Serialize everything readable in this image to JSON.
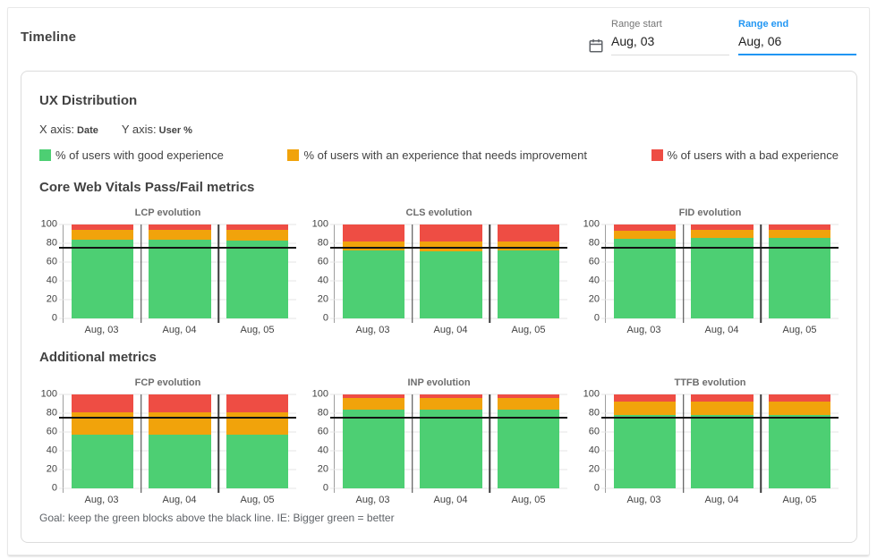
{
  "header": {
    "title": "Timeline",
    "range_start": {
      "label": "Range start",
      "value": "Aug, 03"
    },
    "range_end": {
      "label": "Range end",
      "value": "Aug, 06"
    }
  },
  "panel": {
    "ux_title": "UX Distribution",
    "x_axis_label": "X axis:",
    "x_axis_value": "Date",
    "y_axis_label": "Y axis:",
    "y_axis_value": "User %",
    "legend": [
      {
        "label": "% of users with good experience",
        "color": "#4dcf73"
      },
      {
        "label": "% of users with an experience that needs improvement",
        "color": "#f1a30b"
      },
      {
        "label": "% of users with a bad experience",
        "color": "#ee4d44"
      }
    ],
    "cwv_title": "Core Web Vitals Pass/Fail metrics",
    "additional_title": "Additional metrics",
    "goal_note": "Goal: keep the green blocks above the black line. IE: Bigger green = better"
  },
  "colors": {
    "good": "#4dcf73",
    "needs_improvement": "#f1a30b",
    "bad": "#ee4d44",
    "threshold_line": "#141414",
    "accent": "#2196f3"
  },
  "chart_data": [
    {
      "type": "bar",
      "stacked": true,
      "title": "LCP evolution",
      "xlabel": "Date",
      "ylabel": "User %",
      "ylim": [
        0,
        100
      ],
      "yticks": [
        0,
        20,
        40,
        60,
        80,
        100
      ],
      "categories": [
        "Aug, 03",
        "Aug, 04",
        "Aug, 05"
      ],
      "series": [
        {
          "name": "% of users with good experience",
          "color": "#4dcf73",
          "values": [
            84,
            84,
            83
          ]
        },
        {
          "name": "% of users with an experience that needs improvement",
          "color": "#f1a30b",
          "values": [
            10,
            10,
            11
          ]
        },
        {
          "name": "% of users with a bad experience",
          "color": "#ee4d44",
          "values": [
            6,
            6,
            6
          ]
        }
      ],
      "threshold": 75
    },
    {
      "type": "bar",
      "stacked": true,
      "title": "CLS evolution",
      "xlabel": "Date",
      "ylabel": "User %",
      "ylim": [
        0,
        100
      ],
      "yticks": [
        0,
        20,
        40,
        60,
        80,
        100
      ],
      "categories": [
        "Aug, 03",
        "Aug, 04",
        "Aug, 05"
      ],
      "series": [
        {
          "name": "% of users with good experience",
          "color": "#4dcf73",
          "values": [
            72,
            71,
            72
          ]
        },
        {
          "name": "% of users with an experience that needs improvement",
          "color": "#f1a30b",
          "values": [
            10,
            11,
            10
          ]
        },
        {
          "name": "% of users with a bad experience",
          "color": "#ee4d44",
          "values": [
            18,
            18,
            18
          ]
        }
      ],
      "threshold": 75
    },
    {
      "type": "bar",
      "stacked": true,
      "title": "FID evolution",
      "xlabel": "Date",
      "ylabel": "User %",
      "ylim": [
        0,
        100
      ],
      "yticks": [
        0,
        20,
        40,
        60,
        80,
        100
      ],
      "categories": [
        "Aug, 03",
        "Aug, 04",
        "Aug, 05"
      ],
      "series": [
        {
          "name": "% of users with good experience",
          "color": "#4dcf73",
          "values": [
            85,
            86,
            86
          ]
        },
        {
          "name": "% of users with an experience that needs improvement",
          "color": "#f1a30b",
          "values": [
            8,
            8,
            8
          ]
        },
        {
          "name": "% of users with a bad experience",
          "color": "#ee4d44",
          "values": [
            7,
            6,
            6
          ]
        }
      ],
      "threshold": 75
    },
    {
      "type": "bar",
      "stacked": true,
      "title": "FCP evolution",
      "xlabel": "Date",
      "ylabel": "User %",
      "ylim": [
        0,
        100
      ],
      "yticks": [
        0,
        20,
        40,
        60,
        80,
        100
      ],
      "categories": [
        "Aug, 03",
        "Aug, 04",
        "Aug, 05"
      ],
      "series": [
        {
          "name": "% of users with good experience",
          "color": "#4dcf73",
          "values": [
            57,
            57,
            57
          ]
        },
        {
          "name": "% of users with an experience that needs improvement",
          "color": "#f1a30b",
          "values": [
            24,
            24,
            24
          ]
        },
        {
          "name": "% of users with a bad experience",
          "color": "#ee4d44",
          "values": [
            19,
            19,
            19
          ]
        }
      ],
      "threshold": 75
    },
    {
      "type": "bar",
      "stacked": true,
      "title": "INP evolution",
      "xlabel": "Date",
      "ylabel": "User %",
      "ylim": [
        0,
        100
      ],
      "yticks": [
        0,
        20,
        40,
        60,
        80,
        100
      ],
      "categories": [
        "Aug, 03",
        "Aug, 04",
        "Aug, 05"
      ],
      "series": [
        {
          "name": "% of users with good experience",
          "color": "#4dcf73",
          "values": [
            84,
            84,
            84
          ]
        },
        {
          "name": "% of users with an experience that needs improvement",
          "color": "#f1a30b",
          "values": [
            12,
            12,
            12
          ]
        },
        {
          "name": "% of users with a bad experience",
          "color": "#ee4d44",
          "values": [
            4,
            4,
            4
          ]
        }
      ],
      "threshold": 75
    },
    {
      "type": "bar",
      "stacked": true,
      "title": "TTFB evolution",
      "xlabel": "Date",
      "ylabel": "User %",
      "ylim": [
        0,
        100
      ],
      "yticks": [
        0,
        20,
        40,
        60,
        80,
        100
      ],
      "categories": [
        "Aug, 03",
        "Aug, 04",
        "Aug, 05"
      ],
      "series": [
        {
          "name": "% of users with good experience",
          "color": "#4dcf73",
          "values": [
            78,
            78,
            78
          ]
        },
        {
          "name": "% of users with an experience that needs improvement",
          "color": "#f1a30b",
          "values": [
            14,
            14,
            14
          ]
        },
        {
          "name": "% of users with a bad experience",
          "color": "#ee4d44",
          "values": [
            8,
            8,
            8
          ]
        }
      ],
      "threshold": 75
    }
  ]
}
